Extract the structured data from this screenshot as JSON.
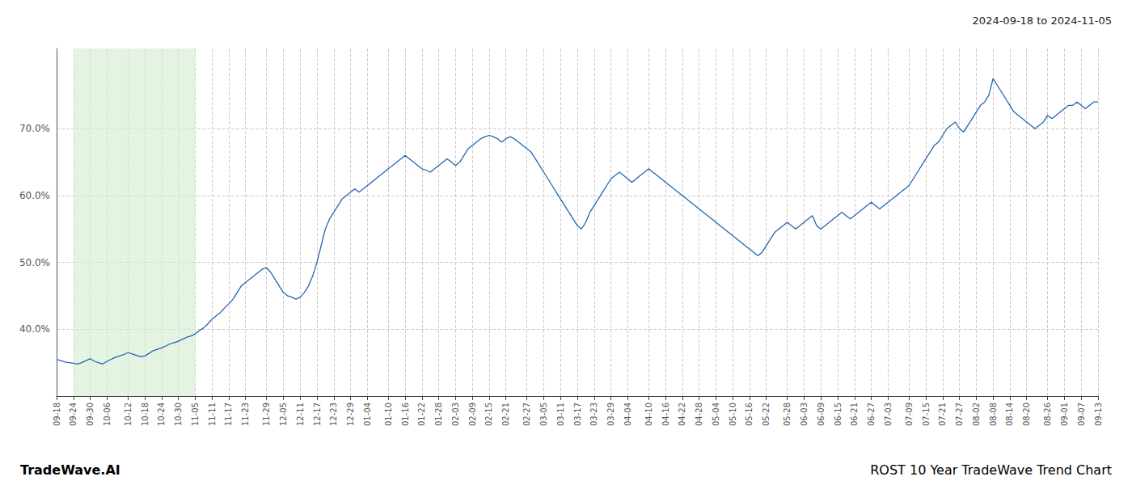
{
  "chart_data": {
    "type": "line",
    "title": "ROST 10 Year TradeWave Trend Chart",
    "subtitle": "2024-09-18 to 2024-11-05",
    "annotations": [
      "TradeWave.AI"
    ],
    "color": "#2466b0",
    "grid": true,
    "highlight": {
      "start": "09-24",
      "end": "11-05",
      "color": "#d6ecd2"
    },
    "ylim": [
      30.0,
      82.0
    ],
    "yticks": [
      {
        "value": 40.0,
        "label": "40.0%"
      },
      {
        "value": 50.0,
        "label": "50.0%"
      },
      {
        "value": 60.0,
        "label": "60.0%"
      },
      {
        "value": 70.0,
        "label": "70.0%"
      }
    ],
    "categories": [
      "09-18",
      null,
      null,
      null,
      "09-24",
      null,
      null,
      null,
      "09-30",
      null,
      null,
      null,
      "10-06",
      null,
      null,
      null,
      null,
      "10-12",
      null,
      null,
      null,
      "10-18",
      null,
      null,
      null,
      "10-24",
      null,
      null,
      null,
      "10-30",
      null,
      null,
      null,
      "11-05",
      null,
      null,
      null,
      "11-11",
      null,
      null,
      null,
      "11-17",
      null,
      null,
      null,
      "11-23",
      null,
      null,
      null,
      null,
      "11-29",
      null,
      null,
      null,
      "12-05",
      null,
      null,
      null,
      "12-11",
      null,
      null,
      null,
      "12-17",
      null,
      null,
      null,
      "12-23",
      null,
      null,
      null,
      "12-29",
      null,
      null,
      null,
      "01-04",
      null,
      null,
      null,
      null,
      "01-10",
      null,
      null,
      null,
      "01-16",
      null,
      null,
      null,
      "01-22",
      null,
      null,
      null,
      "01-28",
      null,
      null,
      null,
      "02-03",
      null,
      null,
      null,
      "02-09",
      null,
      null,
      null,
      "02-15",
      null,
      null,
      null,
      "02-21",
      null,
      null,
      null,
      null,
      "02-27",
      null,
      null,
      null,
      "03-05",
      null,
      null,
      null,
      "03-11",
      null,
      null,
      null,
      "03-17",
      null,
      null,
      null,
      "03-23",
      null,
      null,
      null,
      "03-29",
      null,
      null,
      null,
      "04-04",
      null,
      null,
      null,
      null,
      "04-10",
      null,
      null,
      null,
      "04-16",
      null,
      null,
      null,
      "04-22",
      null,
      null,
      null,
      "04-28",
      null,
      null,
      null,
      "05-04",
      null,
      null,
      null,
      "05-10",
      null,
      null,
      null,
      "05-16",
      null,
      null,
      null,
      "05-22",
      null,
      null,
      null,
      null,
      "05-28",
      null,
      null,
      null,
      "06-03",
      null,
      null,
      null,
      "06-09",
      null,
      null,
      null,
      "06-15",
      null,
      null,
      null,
      "06-21",
      null,
      null,
      null,
      "06-27",
      null,
      null,
      null,
      "07-03",
      null,
      null,
      null,
      null,
      "07-09",
      null,
      null,
      null,
      "07-15",
      null,
      null,
      null,
      "07-21",
      null,
      null,
      null,
      "07-27",
      null,
      null,
      null,
      "08-02",
      null,
      null,
      null,
      "08-08",
      null,
      null,
      null,
      "08-14",
      null,
      null,
      null,
      "08-20",
      null,
      null,
      null,
      null,
      "08-26",
      null,
      null,
      null,
      "09-01",
      null,
      null,
      null,
      "09-07",
      null,
      null,
      null,
      "09-13"
    ],
    "values": [
      35.5,
      35.3,
      35.1,
      35.0,
      34.9,
      34.8,
      35.0,
      35.3,
      35.6,
      35.2,
      35.0,
      34.8,
      35.2,
      35.5,
      35.8,
      36.0,
      36.2,
      36.5,
      36.3,
      36.1,
      35.9,
      36.0,
      36.4,
      36.8,
      37.0,
      37.2,
      37.5,
      37.8,
      38.0,
      38.2,
      38.5,
      38.8,
      39.0,
      39.3,
      39.8,
      40.2,
      40.8,
      41.5,
      42.0,
      42.5,
      43.2,
      43.8,
      44.5,
      45.5,
      46.5,
      47.0,
      47.5,
      48.0,
      48.5,
      49.0,
      49.2,
      48.5,
      47.5,
      46.5,
      45.5,
      45.0,
      44.8,
      44.5,
      44.8,
      45.5,
      46.5,
      48.0,
      50.0,
      52.5,
      55.0,
      56.5,
      57.5,
      58.5,
      59.5,
      60.0,
      60.5,
      61.0,
      60.5,
      61.0,
      61.5,
      62.0,
      62.5,
      63.0,
      63.5,
      64.0,
      64.5,
      65.0,
      65.5,
      66.0,
      65.5,
      65.0,
      64.5,
      64.0,
      63.8,
      63.5,
      64.0,
      64.5,
      65.0,
      65.5,
      65.0,
      64.5,
      65.0,
      66.0,
      67.0,
      67.5,
      68.0,
      68.5,
      68.8,
      69.0,
      68.8,
      68.5,
      68.0,
      68.5,
      68.8,
      68.5,
      68.0,
      67.5,
      67.0,
      66.5,
      65.5,
      64.5,
      63.5,
      62.5,
      61.5,
      60.5,
      59.5,
      58.5,
      57.5,
      56.5,
      55.5,
      55.0,
      56.0,
      57.5,
      58.5,
      59.5,
      60.5,
      61.5,
      62.5,
      63.0,
      63.5,
      63.0,
      62.5,
      62.0,
      62.5,
      63.0,
      63.5,
      64.0,
      63.5,
      63.0,
      62.5,
      62.0,
      61.5,
      61.0,
      60.5,
      60.0,
      59.5,
      59.0,
      58.5,
      58.0,
      57.5,
      57.0,
      56.5,
      56.0,
      55.5,
      55.0,
      54.5,
      54.0,
      53.5,
      53.0,
      52.5,
      52.0,
      51.5,
      51.0,
      51.5,
      52.5,
      53.5,
      54.5,
      55.0,
      55.5,
      56.0,
      55.5,
      55.0,
      55.5,
      56.0,
      56.5,
      57.0,
      55.5,
      55.0,
      55.5,
      56.0,
      56.5,
      57.0,
      57.5,
      57.0,
      56.5,
      57.0,
      57.5,
      58.0,
      58.5,
      59.0,
      58.5,
      58.0,
      58.5,
      59.0,
      59.5,
      60.0,
      60.5,
      61.0,
      61.5,
      62.5,
      63.5,
      64.5,
      65.5,
      66.5,
      67.5,
      68.0,
      69.0,
      70.0,
      70.5,
      71.0,
      70.0,
      69.5,
      70.5,
      71.5,
      72.5,
      73.5,
      74.0,
      75.0,
      77.5,
      76.5,
      75.5,
      74.5,
      73.5,
      72.5,
      72.0,
      71.5,
      71.0,
      70.5,
      70.0,
      70.5,
      71.0,
      72.0,
      71.5,
      72.0,
      72.5,
      73.0,
      73.5,
      73.5,
      74.0,
      73.5,
      73.0,
      73.5,
      74.0,
      74.0
    ]
  }
}
